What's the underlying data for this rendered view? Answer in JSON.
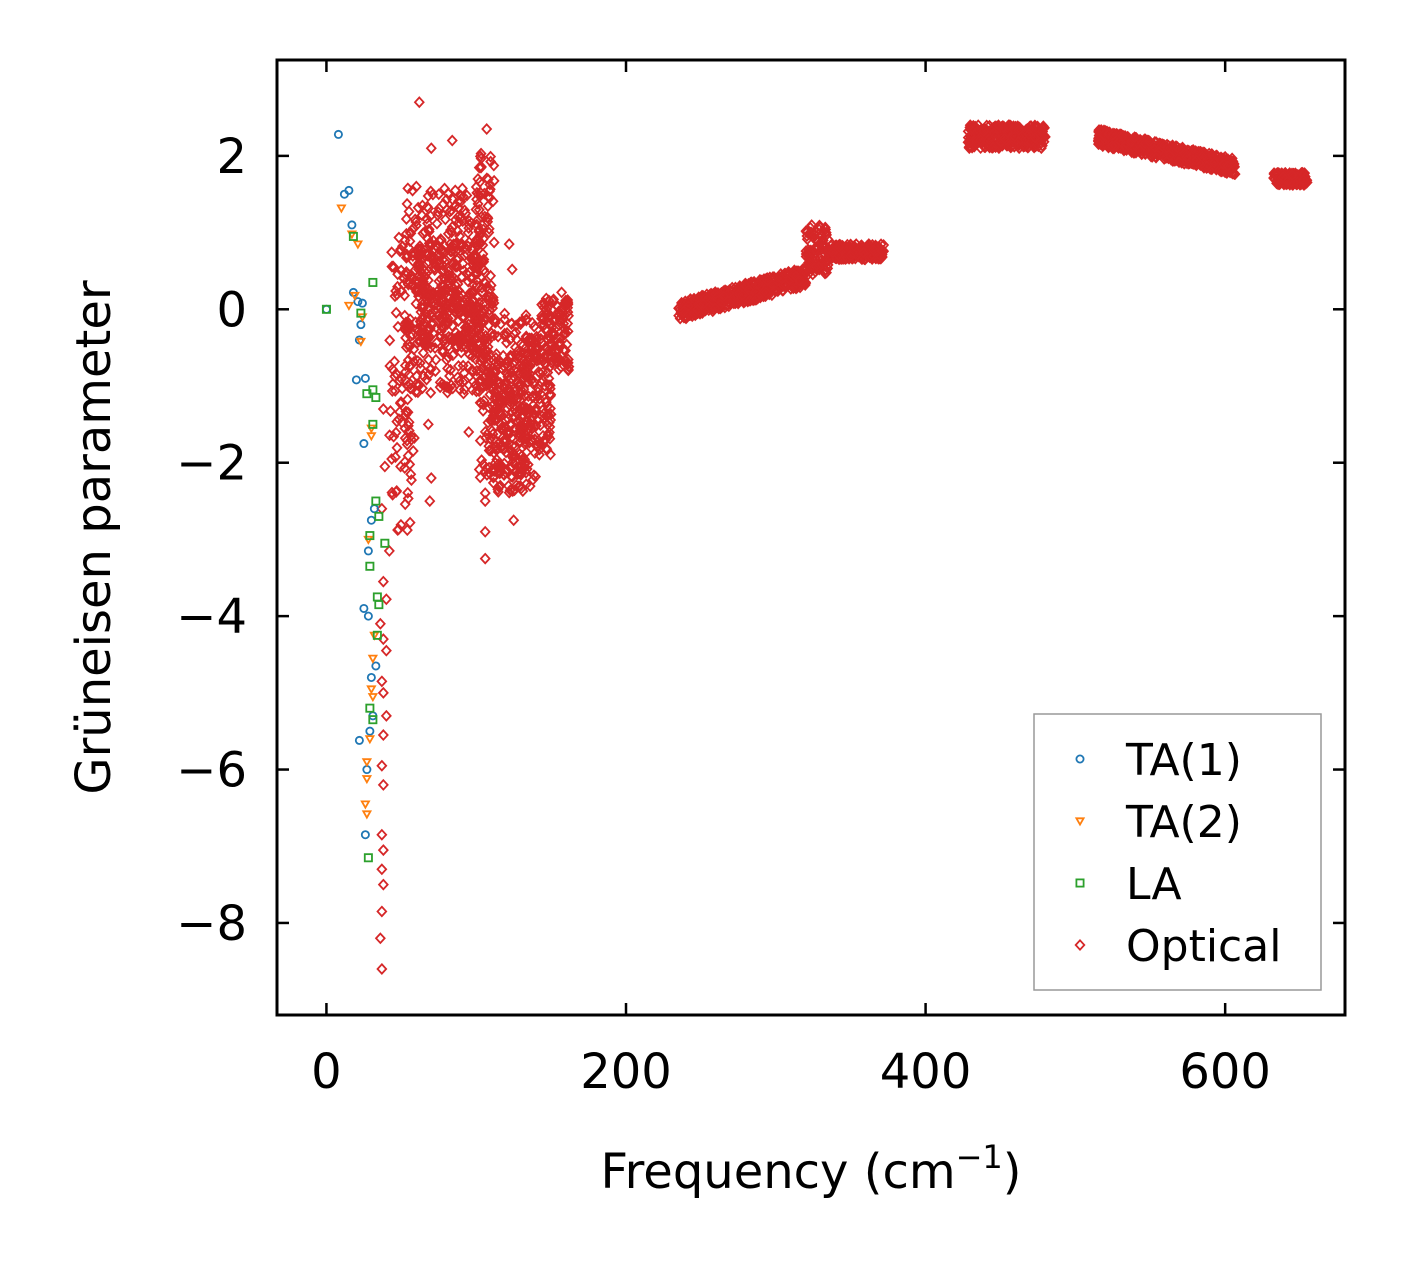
{
  "chart_data": {
    "type": "scatter",
    "title": "",
    "xlabel": "Frequency (cm",
    "xlabel_sup": "−1",
    "xlabel_close": ")",
    "ylabel": "Grüneisen parameter",
    "xlim": [
      -33,
      680
    ],
    "ylim": [
      -9.2,
      3.25
    ],
    "xticks": [
      0,
      200,
      400,
      600
    ],
    "yticks": [
      2,
      0,
      -2,
      -4,
      -6,
      -8
    ],
    "xtick_labels": [
      "0",
      "200",
      "400",
      "600"
    ],
    "ytick_labels": [
      "2",
      "0",
      "−2",
      "−4",
      "−6",
      "−8"
    ],
    "legend_position": "lower-right",
    "series": [
      {
        "name": "TA(1)",
        "marker": "circle",
        "color": "#1f77b4",
        "points": [
          [
            0,
            0
          ],
          [
            8,
            2.28
          ],
          [
            12,
            1.5
          ],
          [
            15,
            1.55
          ],
          [
            17,
            1.1
          ],
          [
            18,
            0.22
          ],
          [
            21,
            0.1
          ],
          [
            24,
            0.08
          ],
          [
            23,
            -0.2
          ],
          [
            22,
            -0.4
          ],
          [
            20,
            -0.92
          ],
          [
            26,
            -0.9
          ],
          [
            25,
            -1.75
          ],
          [
            28,
            -3.15
          ],
          [
            30,
            -2.75
          ],
          [
            32,
            -2.6
          ],
          [
            25,
            -3.9
          ],
          [
            28,
            -4.0
          ],
          [
            33,
            -4.65
          ],
          [
            30,
            -4.8
          ],
          [
            22,
            -5.62
          ],
          [
            29,
            -5.5
          ],
          [
            31,
            -5.3
          ],
          [
            27,
            -6.0
          ],
          [
            26,
            -6.85
          ]
        ]
      },
      {
        "name": "TA(2)",
        "marker": "triangle-down",
        "color": "#ff7f0e",
        "points": [
          [
            10,
            1.32
          ],
          [
            17,
            0.98
          ],
          [
            21,
            0.85
          ],
          [
            15,
            0.05
          ],
          [
            19,
            0.18
          ],
          [
            24,
            -0.1
          ],
          [
            23,
            -0.42
          ],
          [
            30,
            -1.55
          ],
          [
            30,
            -1.65
          ],
          [
            28,
            -3.0
          ],
          [
            32,
            -4.25
          ],
          [
            31,
            -4.55
          ],
          [
            30,
            -4.95
          ],
          [
            31,
            -5.05
          ],
          [
            29,
            -5.6
          ],
          [
            27,
            -5.9
          ],
          [
            27,
            -6.12
          ],
          [
            26,
            -6.45
          ],
          [
            27,
            -6.58
          ]
        ]
      },
      {
        "name": "LA",
        "marker": "square",
        "color": "#2ca02c",
        "points": [
          [
            0,
            0
          ],
          [
            18,
            0.95
          ],
          [
            23,
            -0.05
          ],
          [
            31,
            0.35
          ],
          [
            27,
            -1.1
          ],
          [
            31,
            -1.05
          ],
          [
            33,
            -1.15
          ],
          [
            31,
            -1.5
          ],
          [
            33,
            -2.5
          ],
          [
            35,
            -2.7
          ],
          [
            29,
            -2.95
          ],
          [
            39,
            -3.05
          ],
          [
            29,
            -3.35
          ],
          [
            34,
            -3.75
          ],
          [
            35,
            -3.85
          ],
          [
            34,
            -4.25
          ],
          [
            29,
            -5.2
          ],
          [
            31,
            -5.35
          ],
          [
            28,
            -7.15
          ]
        ]
      },
      {
        "name": "Optical",
        "marker": "diamond",
        "color": "#d62728",
        "points": [
          [
            62,
            2.7
          ],
          [
            70,
            2.1
          ],
          [
            84,
            2.2
          ],
          [
            107,
            2.35
          ],
          [
            60,
            1.6
          ],
          [
            75,
            1.5
          ],
          [
            90,
            1.2
          ],
          [
            122,
            0.85
          ],
          [
            124,
            0.52
          ],
          [
            157,
            0.22
          ],
          [
            96,
            -0.5
          ],
          [
            38,
            -1.3
          ],
          [
            39,
            -2.05
          ],
          [
            37,
            -2.6
          ],
          [
            42,
            -3.15
          ],
          [
            38,
            -3.55
          ],
          [
            40,
            -3.78
          ],
          [
            36,
            -4.1
          ],
          [
            38,
            -4.3
          ],
          [
            40,
            -4.45
          ],
          [
            37,
            -4.85
          ],
          [
            38,
            -5.0
          ],
          [
            40,
            -5.3
          ],
          [
            38,
            -5.55
          ],
          [
            37,
            -5.95
          ],
          [
            38,
            -6.2
          ],
          [
            37,
            -6.85
          ],
          [
            38,
            -7.05
          ],
          [
            37,
            -7.3
          ],
          [
            38,
            -7.5
          ],
          [
            37,
            -7.85
          ],
          [
            36,
            -8.2
          ],
          [
            37,
            -8.6
          ],
          [
            70,
            -2.2
          ],
          [
            69,
            -2.5
          ],
          [
            106,
            -2.9
          ],
          [
            106,
            -3.25
          ],
          [
            125,
            -2.75
          ],
          [
            106,
            -2.5
          ],
          [
            95,
            -1.6
          ],
          [
            68,
            -1.5
          ]
        ],
        "bands": [
          {
            "x_min": 42,
            "x_max": 60,
            "y_min": -2.9,
            "y_max": 1.0
          },
          {
            "x_min": 52,
            "x_max": 106,
            "y_min": -1.1,
            "y_max": 1.6
          },
          {
            "x_min": 60,
            "x_max": 102,
            "y_min": -0.5,
            "y_max": 0.9
          },
          {
            "x_min": 98,
            "x_max": 112,
            "y_min": -1.0,
            "y_max": 2.3
          },
          {
            "x_min": 102,
            "x_max": 140,
            "y_min": -2.4,
            "y_max": -0.05
          },
          {
            "x_min": 110,
            "x_max": 135,
            "y_min": -2.2,
            "y_max": -0.6
          },
          {
            "x_min": 130,
            "x_max": 150,
            "y_min": -1.9,
            "y_max": -0.35
          },
          {
            "x_min": 143,
            "x_max": 162,
            "y_min": -0.8,
            "y_max": 0.15
          },
          {
            "x_min": 235,
            "x_max": 320,
            "y_min": -0.15,
            "y_max": 0.55,
            "slope": 0.8
          },
          {
            "x_min": 320,
            "x_max": 335,
            "y_min": 0.45,
            "y_max": 1.1
          },
          {
            "x_min": 335,
            "x_max": 372,
            "y_min": 0.65,
            "y_max": 0.85
          },
          {
            "x_min": 428,
            "x_max": 480,
            "y_min": 2.1,
            "y_max": 2.4
          },
          {
            "x_min": 515,
            "x_max": 607,
            "y_min": 1.75,
            "y_max": 2.35,
            "slope": -0.6
          },
          {
            "x_min": 632,
            "x_max": 655,
            "y_min": 1.62,
            "y_max": 1.78
          }
        ]
      }
    ]
  }
}
